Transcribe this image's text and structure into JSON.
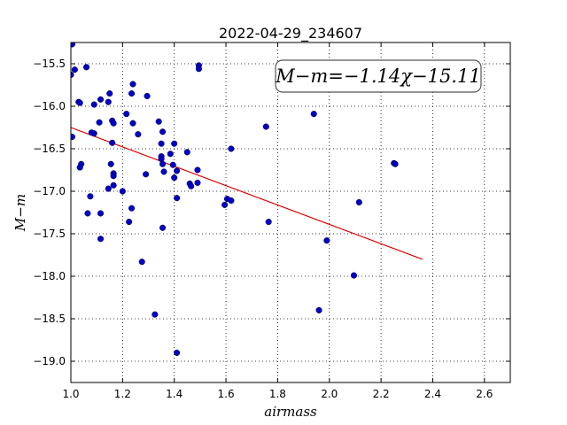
{
  "chart_data": {
    "type": "scatter",
    "title": "2022-04-29_234607",
    "xlabel": "airmass",
    "ylabel": "M−m",
    "xlim": [
      1.0,
      2.7
    ],
    "ylim": [
      -19.25,
      -15.25
    ],
    "xticks": [
      "1.0",
      "1.2",
      "1.4",
      "1.6",
      "1.8",
      "2.0",
      "2.2",
      "2.4",
      "2.6"
    ],
    "yticks": [
      "−15.5",
      "−16.0",
      "−16.5",
      "−17.0",
      "−17.5",
      "−18.0",
      "−18.5",
      "−19.0"
    ],
    "grid": true,
    "annotation": "M−m=−1.14χ−15.11",
    "colors": {
      "points": "#0000c8",
      "fit": "#dd0000"
    },
    "fit_line": {
      "slope": -1.14,
      "intercept": -15.11,
      "x_start": 1.0,
      "x_end": 2.36
    },
    "points": [
      [
        1.005,
        -15.27
      ],
      [
        1.0,
        -15.63
      ],
      [
        1.015,
        -15.57
      ],
      [
        1.06,
        -15.54
      ],
      [
        1.03,
        -15.95
      ],
      [
        1.035,
        -15.96
      ],
      [
        1.09,
        -15.98
      ],
      [
        1.115,
        -15.92
      ],
      [
        1.145,
        -15.95
      ],
      [
        1.15,
        -15.85
      ],
      [
        1.11,
        -16.19
      ],
      [
        1.005,
        -16.36
      ],
      [
        1.08,
        -16.31
      ],
      [
        1.09,
        -16.32
      ],
      [
        1.16,
        -16.17
      ],
      [
        1.165,
        -16.2
      ],
      [
        1.215,
        -16.09
      ],
      [
        1.235,
        -15.85
      ],
      [
        1.24,
        -15.74
      ],
      [
        1.24,
        -16.2
      ],
      [
        1.26,
        -16.33
      ],
      [
        1.295,
        -15.88
      ],
      [
        1.16,
        -16.43
      ],
      [
        1.04,
        -16.68
      ],
      [
        1.035,
        -16.72
      ],
      [
        1.155,
        -16.68
      ],
      [
        1.165,
        -16.79
      ],
      [
        1.165,
        -16.82
      ],
      [
        1.165,
        -16.93
      ],
      [
        1.145,
        -16.97
      ],
      [
        1.2,
        -17.0
      ],
      [
        1.075,
        -17.06
      ],
      [
        1.065,
        -17.26
      ],
      [
        1.115,
        -17.26
      ],
      [
        1.115,
        -17.56
      ],
      [
        1.235,
        -17.2
      ],
      [
        1.225,
        -17.36
      ],
      [
        1.275,
        -17.83
      ],
      [
        1.29,
        -16.8
      ],
      [
        1.34,
        -16.18
      ],
      [
        1.355,
        -16.3
      ],
      [
        1.35,
        -16.44
      ],
      [
        1.35,
        -16.59
      ],
      [
        1.35,
        -16.62
      ],
      [
        1.355,
        -16.68
      ],
      [
        1.36,
        -16.77
      ],
      [
        1.385,
        -16.56
      ],
      [
        1.395,
        -16.69
      ],
      [
        1.4,
        -16.44
      ],
      [
        1.4,
        -16.84
      ],
      [
        1.41,
        -16.76
      ],
      [
        1.45,
        -16.54
      ],
      [
        1.46,
        -16.91
      ],
      [
        1.465,
        -16.94
      ],
      [
        1.49,
        -16.9
      ],
      [
        1.49,
        -16.75
      ],
      [
        1.495,
        -15.52
      ],
      [
        1.495,
        -15.56
      ],
      [
        1.41,
        -17.08
      ],
      [
        1.355,
        -17.43
      ],
      [
        1.325,
        -18.45
      ],
      [
        1.41,
        -18.9
      ],
      [
        1.595,
        -17.16
      ],
      [
        1.605,
        -17.09
      ],
      [
        1.62,
        -17.11
      ],
      [
        1.62,
        -16.5
      ],
      [
        1.755,
        -16.24
      ],
      [
        1.765,
        -17.36
      ],
      [
        1.94,
        -16.09
      ],
      [
        1.96,
        -18.4
      ],
      [
        1.99,
        -17.58
      ],
      [
        2.095,
        -17.99
      ],
      [
        2.115,
        -17.13
      ],
      [
        2.25,
        -16.67
      ],
      [
        2.255,
        -16.68
      ]
    ]
  }
}
